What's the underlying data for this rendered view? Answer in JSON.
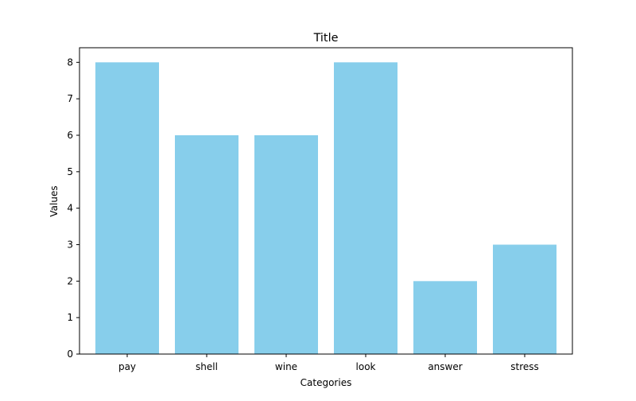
{
  "chart_data": {
    "type": "bar",
    "title": "Title",
    "xlabel": "Categories",
    "ylabel": "Values",
    "categories": [
      "pay",
      "shell",
      "wine",
      "look",
      "answer",
      "stress"
    ],
    "values": [
      8,
      6,
      6,
      8,
      2,
      3
    ],
    "ylim": [
      0,
      8.4
    ],
    "yticks": [
      0,
      1,
      2,
      3,
      4,
      5,
      6,
      7,
      8
    ],
    "bar_color": "#87ceeb",
    "grid": false,
    "legend": "none"
  }
}
